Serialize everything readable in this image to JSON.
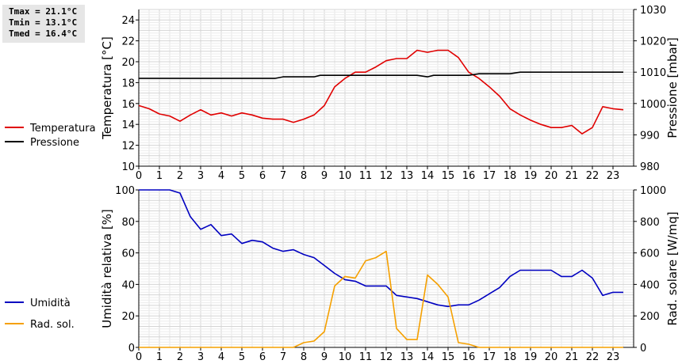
{
  "stats": [
    "Tmax = 21.1°C",
    "Tmin = 13.1°C",
    "Tmed = 16.4°C"
  ],
  "chart_data": [
    {
      "type": "line",
      "ylabel": "Temperatura [°C]",
      "y2label": "Pressione [mbar]",
      "ylim": [
        10,
        25
      ],
      "y2lim": [
        980,
        1030
      ],
      "xlim": [
        0,
        24
      ],
      "xticks": [
        "0",
        "1",
        "2",
        "3",
        "4",
        "5",
        "6",
        "7",
        "8",
        "9",
        "10",
        "11",
        "12",
        "13",
        "14",
        "15",
        "16",
        "17",
        "18",
        "19",
        "20",
        "21",
        "22",
        "23"
      ],
      "yticks": [
        "10",
        "12",
        "14",
        "16",
        "18",
        "20",
        "22",
        "24"
      ],
      "y2ticks": [
        "980",
        "990",
        "1000",
        "1010",
        "1020",
        "1030"
      ],
      "grid": true,
      "legend_position": "left",
      "series": [
        {
          "name": "Temperatura",
          "axis": "left",
          "color": "#e00000",
          "x": [
            0,
            0.5,
            1,
            1.5,
            2,
            2.5,
            3,
            3.5,
            4,
            4.5,
            5,
            5.5,
            6,
            6.5,
            7,
            7.5,
            8,
            8.5,
            9,
            9.5,
            10,
            10.5,
            11,
            11.5,
            12,
            12.5,
            13,
            13.5,
            14,
            14.5,
            15,
            15.5,
            16,
            16.5,
            17,
            17.5,
            18,
            18.5,
            19,
            19.5,
            20,
            20.5,
            21,
            21.5,
            22,
            22.5,
            23,
            23.5
          ],
          "y": [
            15.8,
            15.5,
            15.0,
            14.8,
            14.3,
            14.9,
            15.4,
            14.9,
            15.1,
            14.8,
            15.1,
            14.9,
            14.6,
            14.5,
            14.5,
            14.2,
            14.5,
            14.9,
            15.8,
            17.6,
            18.4,
            19.0,
            19.0,
            19.5,
            20.1,
            20.3,
            20.3,
            21.1,
            20.9,
            21.1,
            21.1,
            20.4,
            19.0,
            18.4,
            17.6,
            16.7,
            15.5,
            14.9,
            14.4,
            14.0,
            13.7,
            13.7,
            13.9,
            13.1,
            13.7,
            15.7,
            15.5,
            15.4
          ]
        },
        {
          "name": "Pressione",
          "axis": "right",
          "color": "#000000",
          "x": [
            0,
            6.5,
            6.6,
            7,
            8.5,
            8.8,
            9,
            13.5,
            14,
            14.3,
            15,
            16,
            16.5,
            18,
            18.5,
            23.5
          ],
          "y": [
            1008,
            1008,
            1008,
            1008.5,
            1008.5,
            1009,
            1009,
            1009,
            1008.5,
            1009,
            1009,
            1009,
            1009.5,
            1009.5,
            1010,
            1010
          ]
        }
      ]
    },
    {
      "type": "line",
      "ylabel": "Umidità relativa [%]",
      "y2label": "Rad. solare [W/mq]",
      "ylim": [
        0,
        100
      ],
      "y2lim": [
        0,
        1000
      ],
      "xlim": [
        0,
        24
      ],
      "xticks": [
        "0",
        "1",
        "2",
        "3",
        "4",
        "5",
        "6",
        "7",
        "8",
        "9",
        "10",
        "11",
        "12",
        "13",
        "14",
        "15",
        "16",
        "17",
        "18",
        "19",
        "20",
        "21",
        "22",
        "23"
      ],
      "yticks": [
        "0",
        "20",
        "40",
        "60",
        "80",
        "100"
      ],
      "y2ticks": [
        "0",
        "200",
        "400",
        "600",
        "800",
        "1000"
      ],
      "grid": true,
      "legend_position": "left",
      "series": [
        {
          "name": "Umidità",
          "axis": "left",
          "color": "#0000c0",
          "x": [
            0,
            0.5,
            1,
            1.5,
            2,
            2.5,
            3,
            3.5,
            4,
            4.5,
            5,
            5.5,
            6,
            6.5,
            7,
            7.5,
            8,
            8.5,
            9,
            9.5,
            10,
            10.5,
            11,
            11.5,
            12,
            12.5,
            13,
            13.5,
            14,
            14.5,
            15,
            15.5,
            16,
            16.5,
            17,
            17.5,
            18,
            18.5,
            19,
            19.5,
            20,
            20.5,
            21,
            21.5,
            22,
            22.5,
            23,
            23.5
          ],
          "y": [
            100,
            100,
            100,
            100,
            98,
            83,
            75,
            78,
            71,
            72,
            66,
            68,
            67,
            63,
            61,
            62,
            59,
            57,
            52,
            47,
            43,
            42,
            39,
            39,
            39,
            33,
            32,
            31,
            29,
            27,
            26,
            27,
            27,
            30,
            34,
            38,
            45,
            49,
            49,
            49,
            49,
            45,
            45,
            49,
            44,
            33,
            35,
            35
          ]
        },
        {
          "name": "Rad. sol.",
          "axis": "right",
          "color": "#f5a000",
          "x": [
            0,
            7.5,
            8,
            8.5,
            9,
            9.5,
            10,
            10.5,
            11,
            11.5,
            12,
            12.5,
            13,
            13.5,
            14,
            14.5,
            15,
            15.5,
            16,
            16.5,
            17,
            23.5
          ],
          "y": [
            0,
            0,
            30,
            40,
            100,
            390,
            450,
            440,
            550,
            570,
            610,
            120,
            50,
            50,
            460,
            400,
            320,
            30,
            20,
            0,
            0,
            0
          ]
        }
      ]
    }
  ]
}
